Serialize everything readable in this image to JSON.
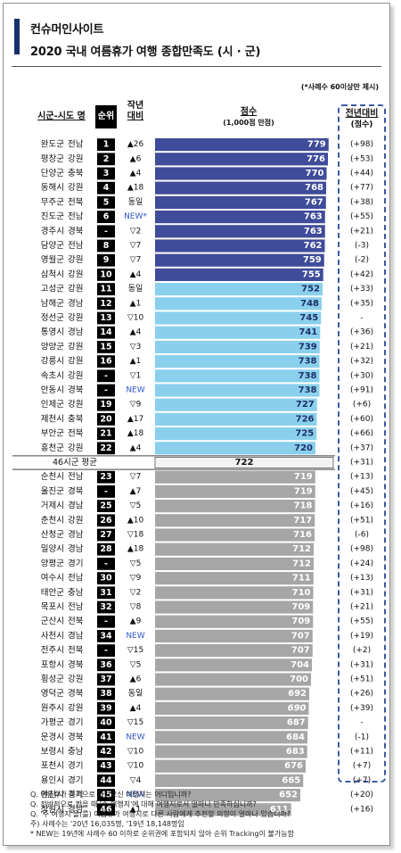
{
  "header": {
    "title": "컨슈머인사이트",
    "subtitle": "2020 국내 여름휴가 여행 종합만족도 (시 · 군)",
    "note": "(*사례수 60이상만 제시)"
  },
  "columns": {
    "region": "시군-시도 명",
    "rank": "순위",
    "prev_line1": "작년",
    "prev_line2": "대비",
    "score_line1": "점수",
    "score_line2": "(1,000점 만점)",
    "change_line1": "전년대비",
    "change_line2": "(점수)"
  },
  "colors": {
    "top_tier": "#3f4c9a",
    "mid_tier": "#8ad0ec",
    "low_tier": "#a6a6a6",
    "average_row": "#f2f2f2",
    "rank_cell": "#000000",
    "new_text": "#2f57c4"
  },
  "chart_data": {
    "type": "bar",
    "orientation": "horizontal",
    "value_max": 1000,
    "average": {
      "label": "46시군 평균",
      "score": 722,
      "change": "(+31)",
      "after_index": 22
    },
    "rows": [
      {
        "city": "완도군",
        "province": "전남",
        "rank": "1",
        "prev": "▲26",
        "score": 779,
        "change": "(+98)",
        "tier": "top"
      },
      {
        "city": "평창군",
        "province": "강원",
        "rank": "2",
        "prev": "▲6",
        "score": 776,
        "change": "(+53)",
        "tier": "top"
      },
      {
        "city": "단양군",
        "province": "충북",
        "rank": "3",
        "prev": "▲4",
        "score": 770,
        "change": "(+44)",
        "tier": "top"
      },
      {
        "city": "동해시",
        "province": "강원",
        "rank": "4",
        "prev": "▲18",
        "score": 768,
        "change": "(+77)",
        "tier": "top"
      },
      {
        "city": "무주군",
        "province": "전북",
        "rank": "5",
        "prev": "동일",
        "score": 767,
        "change": "(+38)",
        "tier": "top"
      },
      {
        "city": "진도군",
        "province": "전남",
        "rank": "6",
        "prev": "NEW*",
        "score": 763,
        "change": "(+55)",
        "tier": "top"
      },
      {
        "city": "경주시",
        "province": "경북",
        "rank": "-",
        "prev": "▽2",
        "score": 763,
        "change": "(+21)",
        "tier": "top"
      },
      {
        "city": "담양군",
        "province": "전남",
        "rank": "8",
        "prev": "▽7",
        "score": 762,
        "change": "(-3)",
        "tier": "top"
      },
      {
        "city": "영월군",
        "province": "강원",
        "rank": "9",
        "prev": "▽7",
        "score": 759,
        "change": "(-2)",
        "tier": "top"
      },
      {
        "city": "삼척시",
        "province": "강원",
        "rank": "10",
        "prev": "▲4",
        "score": 755,
        "change": "(+42)",
        "tier": "top"
      },
      {
        "city": "고성군",
        "province": "강원",
        "rank": "11",
        "prev": "동일",
        "score": 752,
        "change": "(+33)",
        "tier": "mid"
      },
      {
        "city": "남해군",
        "province": "경남",
        "rank": "12",
        "prev": "▲1",
        "score": 748,
        "change": "(+35)",
        "tier": "mid"
      },
      {
        "city": "정선군",
        "province": "강원",
        "rank": "13",
        "prev": "▽10",
        "score": 745,
        "change": "-",
        "tier": "mid"
      },
      {
        "city": "통영시",
        "province": "경남",
        "rank": "14",
        "prev": "▲4",
        "score": 741,
        "change": "(+36)",
        "tier": "mid"
      },
      {
        "city": "양양군",
        "province": "강원",
        "rank": "15",
        "prev": "▽3",
        "score": 739,
        "change": "(+21)",
        "tier": "mid"
      },
      {
        "city": "강릉시",
        "province": "강원",
        "rank": "16",
        "prev": "▲1",
        "score": 738,
        "change": "(+32)",
        "tier": "mid"
      },
      {
        "city": "속초시",
        "province": "강원",
        "rank": "-",
        "prev": "▽1",
        "score": 738,
        "change": "(+30)",
        "tier": "mid"
      },
      {
        "city": "안동시",
        "province": "경북",
        "rank": "-",
        "prev": "NEW",
        "score": 738,
        "change": "(+91)",
        "tier": "mid"
      },
      {
        "city": "인제군",
        "province": "강원",
        "rank": "19",
        "prev": "▽9",
        "score": 727,
        "change": "(+6)",
        "tier": "mid"
      },
      {
        "city": "제천시",
        "province": "충북",
        "rank": "20",
        "prev": "▲17",
        "score": 726,
        "change": "(+60)",
        "tier": "mid"
      },
      {
        "city": "부안군",
        "province": "전북",
        "rank": "21",
        "prev": "▲18",
        "score": 725,
        "change": "(+66)",
        "tier": "mid"
      },
      {
        "city": "홍천군",
        "province": "강원",
        "rank": "22",
        "prev": "▲4",
        "score": 720,
        "change": "(+37)",
        "tier": "mid"
      },
      {
        "city": "순천시",
        "province": "전남",
        "rank": "23",
        "prev": "▽7",
        "score": 719,
        "change": "(+13)",
        "tier": "low"
      },
      {
        "city": "울진군",
        "province": "경북",
        "rank": "-",
        "prev": "▲7",
        "score": 719,
        "change": "(+45)",
        "tier": "low"
      },
      {
        "city": "거제시",
        "province": "경남",
        "rank": "25",
        "prev": "▽5",
        "score": 718,
        "change": "(+16)",
        "tier": "low"
      },
      {
        "city": "춘천시",
        "province": "강원",
        "rank": "26",
        "prev": "▲10",
        "score": 717,
        "change": "(+51)",
        "tier": "low"
      },
      {
        "city": "산청군",
        "province": "경남",
        "rank": "27",
        "prev": "▽18",
        "score": 716,
        "change": "(-6)",
        "tier": "low"
      },
      {
        "city": "밀양시",
        "province": "경남",
        "rank": "28",
        "prev": "▲18",
        "score": 712,
        "change": "(+98)",
        "tier": "low"
      },
      {
        "city": "양평군",
        "province": "경기",
        "rank": "-",
        "prev": "▽5",
        "score": 712,
        "change": "(+24)",
        "tier": "low"
      },
      {
        "city": "여수시",
        "province": "전남",
        "rank": "30",
        "prev": "▽9",
        "score": 711,
        "change": "(+13)",
        "tier": "low"
      },
      {
        "city": "태안군",
        "province": "충남",
        "rank": "31",
        "prev": "▽2",
        "score": 710,
        "change": "(+31)",
        "tier": "low"
      },
      {
        "city": "목포시",
        "province": "전남",
        "rank": "32",
        "prev": "▽8",
        "score": 709,
        "change": "(+21)",
        "tier": "low"
      },
      {
        "city": "군산시",
        "province": "전북",
        "rank": "-",
        "prev": "▲9",
        "score": 709,
        "change": "(+55)",
        "tier": "low"
      },
      {
        "city": "사천시",
        "province": "경남",
        "rank": "34",
        "prev": "NEW",
        "score": 707,
        "change": "(+19)",
        "tier": "low"
      },
      {
        "city": "전주시",
        "province": "전북",
        "rank": "-",
        "prev": "▽15",
        "score": 707,
        "change": "(+2)",
        "tier": "low"
      },
      {
        "city": "포항시",
        "province": "경북",
        "rank": "36",
        "prev": "▽5",
        "score": 704,
        "change": "(+31)",
        "tier": "low"
      },
      {
        "city": "횡성군",
        "province": "강원",
        "rank": "37",
        "prev": "▲6",
        "score": 700,
        "change": "(+51)",
        "tier": "low"
      },
      {
        "city": "영덕군",
        "province": "경북",
        "rank": "38",
        "prev": "동일",
        "score": 692,
        "change": "(+26)",
        "tier": "low"
      },
      {
        "city": "원주시",
        "province": "강원",
        "rank": "39",
        "prev": "▲4",
        "score": 690,
        "change": "(+39)",
        "tier": "low"
      },
      {
        "city": "가평군",
        "province": "경기",
        "rank": "40",
        "prev": "▽15",
        "score": 687,
        "change": "-",
        "tier": "low"
      },
      {
        "city": "문경시",
        "province": "경북",
        "rank": "41",
        "prev": "NEW",
        "score": 684,
        "change": "(-1)",
        "tier": "low"
      },
      {
        "city": "보령시",
        "province": "충남",
        "rank": "42",
        "prev": "▽10",
        "score": 683,
        "change": "(+11)",
        "tier": "low"
      },
      {
        "city": "포천시",
        "province": "경기",
        "rank": "43",
        "prev": "▽10",
        "score": 676,
        "change": "(+7)",
        "tier": "low"
      },
      {
        "city": "용인시",
        "province": "경기",
        "rank": "44",
        "prev": "▽4",
        "score": 665,
        "change": "(+7)",
        "tier": "low"
      },
      {
        "city": "안산시",
        "province": "경기",
        "rank": "45",
        "prev": "NEW",
        "score": 652,
        "change": "(+20)",
        "tier": "low"
      },
      {
        "city": "창원시",
        "province": "경남",
        "rank": "46",
        "prev": "▲1",
        "score": 611,
        "change": "(+16)",
        "tier": "low"
      }
    ]
  },
  "footnotes": [
    "Q. 여름휴가 목적으로 다녀오신 여행지는 어디입니까?",
    "Q. 전반적으로 봤을 때 '주 여행지'에 대해 여행지로서 얼마나 만족하십니까?",
    "Q. '주 여행지'을(를) 여름휴가 여행지로 다른 사람에게 추천할 의향이 얼마나 있습니까?",
    "주) 사례수는 '20년 16,035명, '19년 18,148명임",
    "* NEW는 19년에 사례수 60 이하로 순위권에 포함되지 않아 순위 Tracking이 불가능함"
  ]
}
